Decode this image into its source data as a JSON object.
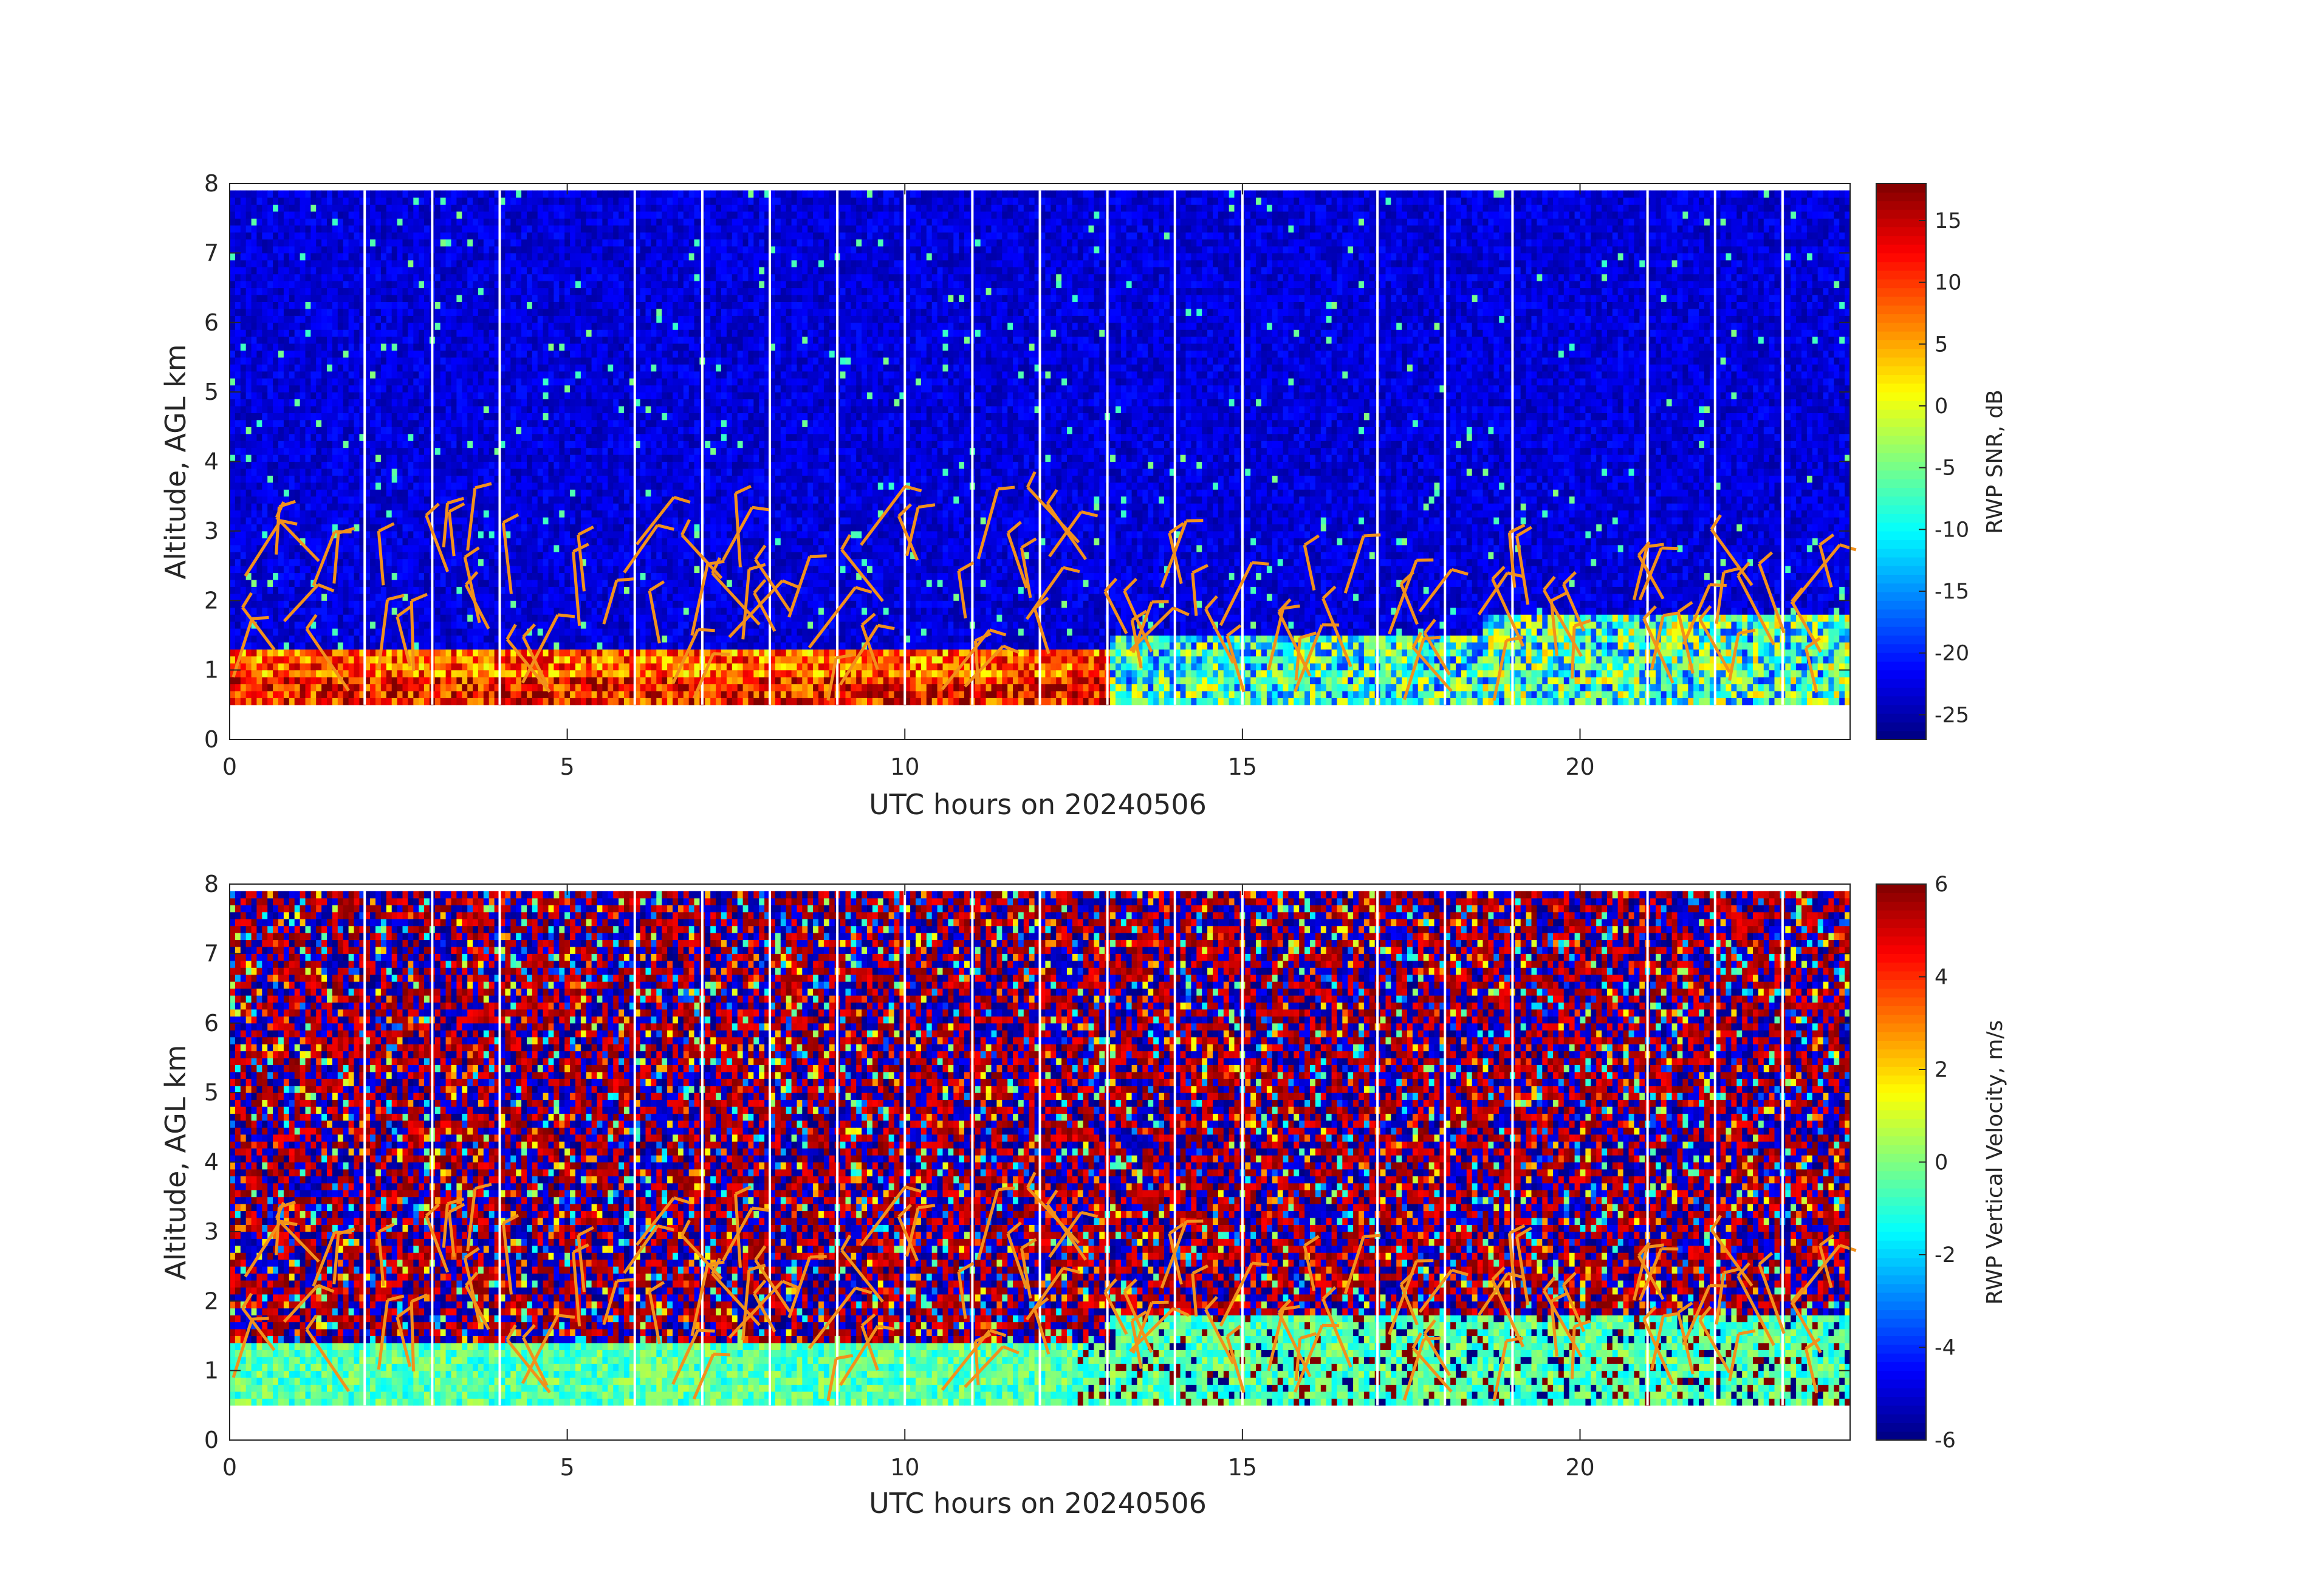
{
  "figure": {
    "panels": [
      {
        "xlabel": "UTC hours on 20240506",
        "ylabel": "Altitude, AGL km",
        "colorbar_label": "RWP SNR, dB",
        "xticks": [
          "0",
          "5",
          "10",
          "15",
          "20"
        ],
        "yticks": [
          "0",
          "1",
          "2",
          "3",
          "4",
          "5",
          "6",
          "7",
          "8"
        ],
        "cbticks": [
          "15",
          "10",
          "5",
          "0",
          "-5",
          "-10",
          "-15",
          "-20",
          "-25"
        ]
      },
      {
        "xlabel": "UTC hours on 20240506",
        "ylabel": "Altitude, AGL km",
        "colorbar_label": "RWP Vertical Velocity, m/s",
        "xticks": [
          "0",
          "5",
          "10",
          "15",
          "20"
        ],
        "yticks": [
          "0",
          "1",
          "2",
          "3",
          "4",
          "5",
          "6",
          "7",
          "8"
        ],
        "cbticks": [
          "6",
          "4",
          "2",
          "0",
          "-2",
          "-4",
          "-6"
        ]
      }
    ]
  },
  "chart_data": [
    {
      "type": "heatmap",
      "xlabel": "UTC hours on 20240506",
      "ylabel": "Altitude, AGL km",
      "colorbar_label": "RWP SNR, dB",
      "colormap": "jet",
      "xlim": [
        0,
        24
      ],
      "ylim": [
        0,
        8
      ],
      "clim": [
        -27,
        18
      ],
      "xticks": [
        0,
        5,
        10,
        15,
        20
      ],
      "yticks": [
        0,
        1,
        2,
        3,
        4,
        5,
        6,
        7,
        8
      ],
      "cbticks": [
        15,
        10,
        5,
        0,
        -5,
        -10,
        -15,
        -20,
        -25
      ],
      "data_altitude_range_km": [
        0.5,
        7.9
      ],
      "data_gaps_utc_hours": [
        2,
        3,
        4,
        6,
        7,
        8,
        9,
        10,
        11,
        12,
        13,
        14,
        15,
        17,
        18,
        19,
        21,
        22,
        23
      ],
      "layers": [
        {
          "description_time_utc": [
            0,
            13
          ],
          "top_km": 1.3,
          "bottom_km": 0.5,
          "typical_snr_db": 8
        },
        {
          "description_time_utc": [
            13,
            18.5
          ],
          "top_km": 1.5,
          "bottom_km": 0.5,
          "typical_snr_db": -8
        },
        {
          "description_time_utc": [
            18.5,
            24
          ],
          "top_km": 1.8,
          "bottom_km": 0.5,
          "typical_snr_db": -5
        }
      ],
      "background_snr_db": -23,
      "overlay": "wind barbs (orange) at ~0.5 h intervals below ~3 km"
    },
    {
      "type": "heatmap",
      "xlabel": "UTC hours on 20240506",
      "ylabel": "Altitude, AGL km",
      "colorbar_label": "RWP Vertical Velocity, m/s",
      "colormap": "jet",
      "xlim": [
        0,
        24
      ],
      "ylim": [
        0,
        8
      ],
      "clim": [
        -6,
        6
      ],
      "xticks": [
        0,
        5,
        10,
        15,
        20
      ],
      "yticks": [
        0,
        1,
        2,
        3,
        4,
        5,
        6,
        7,
        8
      ],
      "cbticks": [
        6,
        4,
        2,
        0,
        -2,
        -4,
        -6
      ],
      "data_altitude_range_km": [
        0.5,
        7.9
      ],
      "data_gaps_utc_hours": [
        2,
        3,
        4,
        6,
        7,
        8,
        9,
        10,
        11,
        12,
        13,
        14,
        15,
        17,
        18,
        19,
        21,
        22,
        23
      ],
      "layers": [
        {
          "description_time_utc": [
            0,
            13
          ],
          "top_km": 1.35,
          "bottom_km": 0.5,
          "typical_velocity_ms": -0.5
        },
        {
          "description_time_utc": [
            13,
            24
          ],
          "top_km": 1.75,
          "bottom_km": 0.5,
          "typical_velocity_ms": -0.5
        }
      ],
      "above_layer": "noisy, alternating ±6 m/s",
      "overlay": "wind barbs (orange) at ~0.5 h intervals below ~3 km"
    }
  ]
}
